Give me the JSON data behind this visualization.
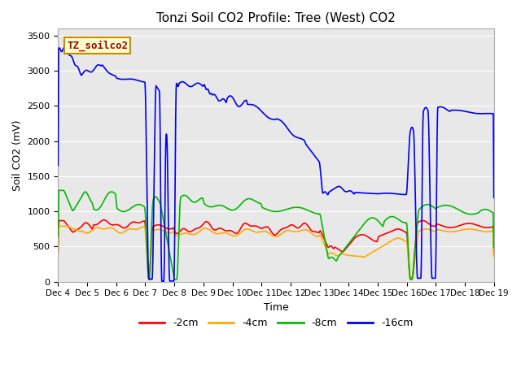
{
  "title": "Tonzi Soil CO2 Profile: Tree (West) CO2",
  "xlabel": "Time",
  "ylabel": "Soil CO2 (mV)",
  "ylim": [
    0,
    3600
  ],
  "yticks": [
    0,
    500,
    1000,
    1500,
    2000,
    2500,
    3000,
    3500
  ],
  "xlim": [
    0,
    15
  ],
  "xtick_labels": [
    "Dec 4",
    "Dec 5",
    "Dec 6",
    "Dec 7",
    "Dec 8",
    "Dec 9",
    "Dec 10",
    "Dec 11",
    "Dec 12",
    "Dec 13",
    "Dec 14",
    "Dec 15",
    "Dec 16",
    "Dec 17",
    "Dec 18",
    "Dec 19"
  ],
  "colors": {
    "minus2cm": "#ff0000",
    "minus4cm": "#ffaa00",
    "minus8cm": "#00bb00",
    "minus16cm": "#0000ee"
  },
  "legend_entries": [
    "-2cm",
    "-4cm",
    "-8cm",
    "-16cm"
  ],
  "fig_bg_color": "#ffffff",
  "plot_bg_color": "#e8e8e8",
  "grid_color": "#ffffff",
  "tag_label": "TZ_soilco2",
  "tag_box_color": "#ffffcc",
  "tag_border_color": "#cc8800",
  "tag_text_color": "#aa0000"
}
